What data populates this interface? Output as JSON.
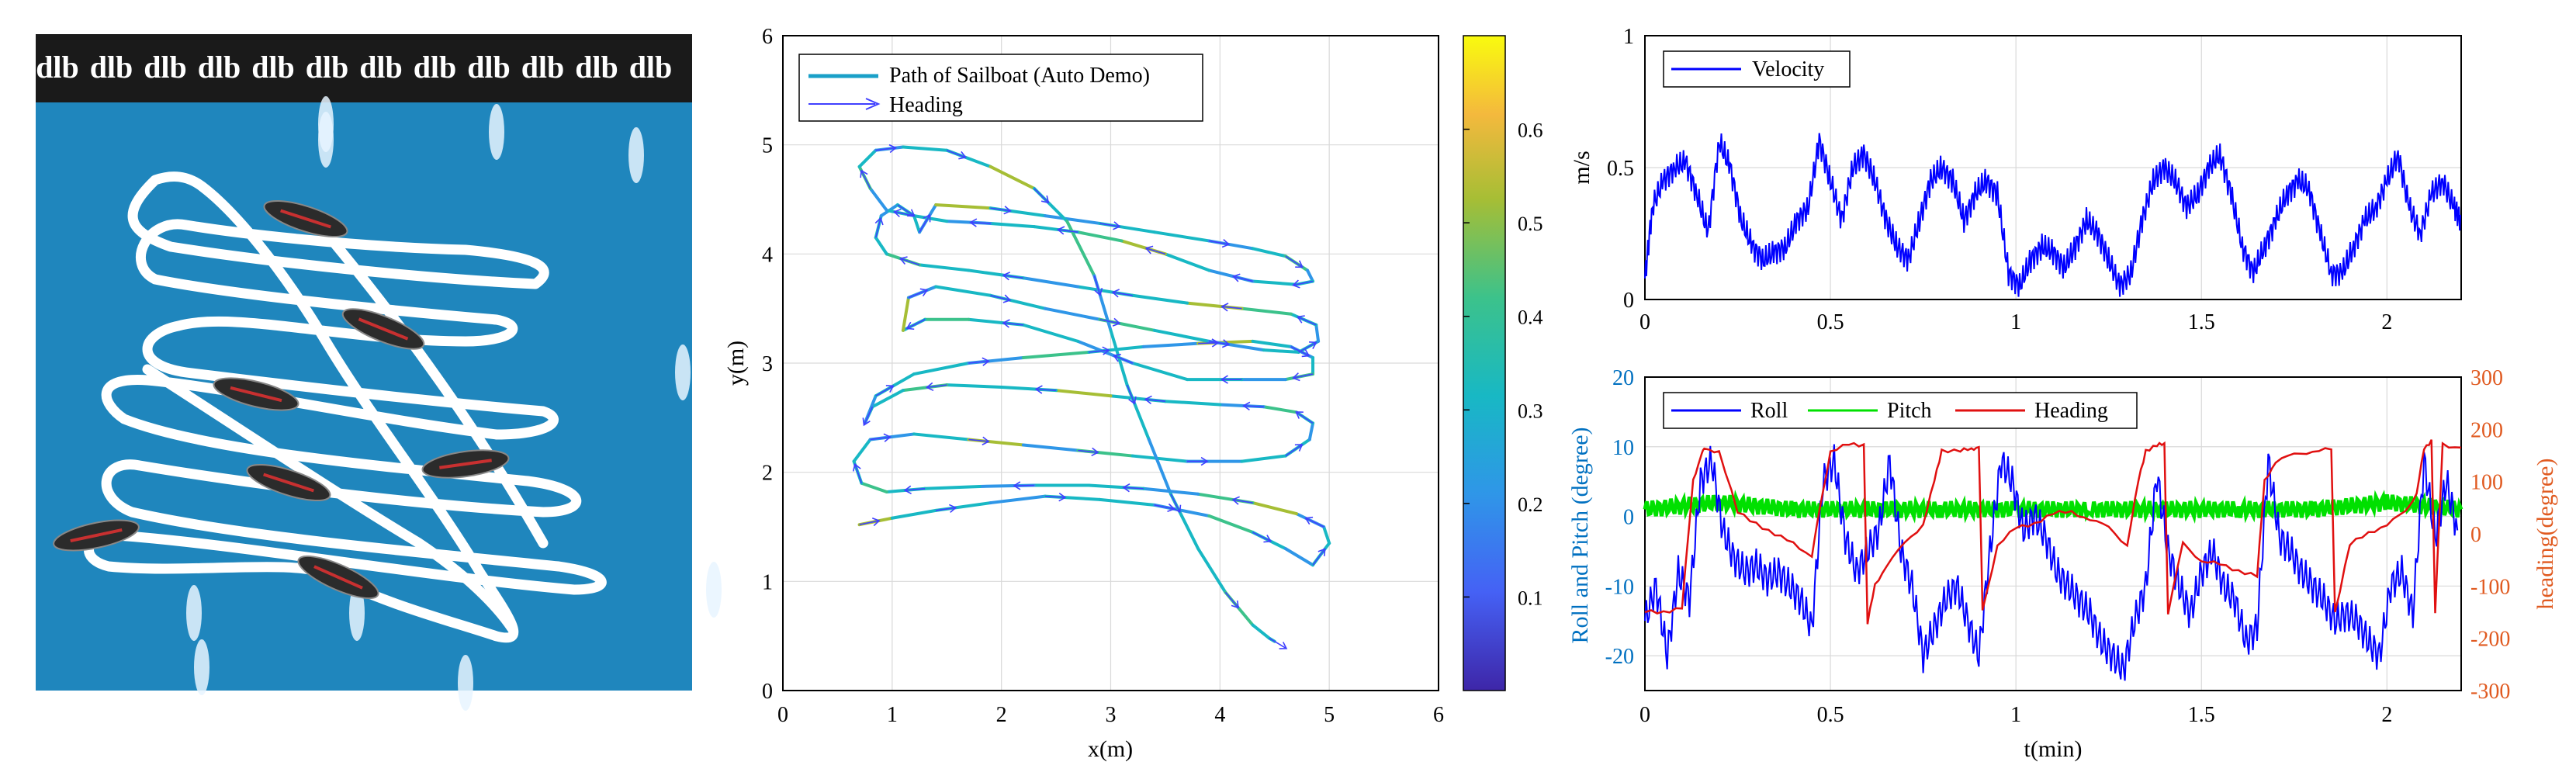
{
  "photo": {
    "logo_glyph": "dlb",
    "logo_count": 12,
    "colors": {
      "water": "#1f86bd",
      "banner": "#1a1a1a",
      "track": "#ffffff"
    }
  },
  "colors": {
    "roll": "#0000ff",
    "pitch": "#00e000",
    "heading": "#e01010",
    "velocity": "#0000ff",
    "left_axis": "#0070c0",
    "right_axis": "#e05a20",
    "heading_arrow": "#4040ff"
  },
  "chart_data": [
    {
      "type": "line",
      "panel": "trajectory",
      "xlabel": "x(m)",
      "ylabel": "y(m)",
      "xlim": [
        0,
        6
      ],
      "ylim": [
        0,
        6
      ],
      "xticks": [
        "0",
        "1",
        "2",
        "3",
        "4",
        "5",
        "6"
      ],
      "yticks": [
        "0",
        "1",
        "2",
        "3",
        "4",
        "5",
        "6"
      ],
      "grid": true,
      "legend": {
        "position": "top-left",
        "entries": [
          "Path of Sailboat (Auto Demo)",
          "Heading"
        ]
      },
      "colorbar": {
        "range": [
          0,
          0.7
        ],
        "ticks": [
          "0.1",
          "0.2",
          "0.3",
          "0.4",
          "0.5",
          "0.6"
        ],
        "colormap": "parula"
      },
      "series": [
        {
          "name": "Path of Sailboat (Auto Demo)",
          "x": [
            0.7,
            1.0,
            1.4,
            1.9,
            2.4,
            2.9,
            3.4,
            3.9,
            4.3,
            4.6,
            4.85,
            5.0,
            4.95,
            4.7,
            4.3,
            3.8,
            3.3,
            2.8,
            2.3,
            1.8,
            1.3,
            0.95,
            0.72,
            0.65,
            0.8,
            1.2,
            1.7,
            2.2,
            2.7,
            3.2,
            3.7,
            4.2,
            4.6,
            4.82,
            4.85,
            4.7,
            4.4,
            4.0,
            3.5,
            3.0,
            2.5,
            2.0,
            1.5,
            1.1,
            0.82,
            0.75,
            0.85,
            1.2,
            1.7,
            2.2,
            2.8,
            3.3,
            3.8,
            4.3,
            4.65,
            4.85,
            4.85,
            4.6,
            4.2,
            3.7,
            3.2,
            2.7,
            2.2,
            1.7,
            1.3,
            1.1,
            1.15,
            1.4,
            1.9,
            2.4,
            2.9,
            3.4,
            3.9,
            4.4,
            4.72,
            4.9,
            4.88,
            4.65,
            4.2,
            3.7,
            3.2,
            2.7,
            2.2,
            1.7,
            1.25,
            0.95,
            0.85,
            0.9,
            1.05,
            1.2,
            1.25,
            1.4,
            1.9,
            2.4,
            2.9,
            3.4,
            3.9,
            4.3,
            4.6,
            4.8,
            4.85,
            4.7,
            4.3,
            3.9,
            3.5,
            3.1,
            2.7,
            2.3,
            1.9,
            1.5,
            1.2,
            0.95,
            0.8,
            0.7,
            0.85,
            1.1,
            1.5,
            1.9,
            2.3,
            2.6,
            2.85,
            3.0,
            3.15,
            3.35,
            3.55,
            3.8,
            4.05,
            4.3,
            4.45,
            4.5
          ],
          "y": [
            1.52,
            1.58,
            1.65,
            1.72,
            1.78,
            1.75,
            1.7,
            1.6,
            1.45,
            1.3,
            1.15,
            1.35,
            1.5,
            1.62,
            1.72,
            1.8,
            1.85,
            1.88,
            1.88,
            1.87,
            1.85,
            1.82,
            1.9,
            2.1,
            2.3,
            2.35,
            2.3,
            2.25,
            2.2,
            2.15,
            2.1,
            2.1,
            2.15,
            2.3,
            2.45,
            2.55,
            2.6,
            2.62,
            2.65,
            2.7,
            2.75,
            2.78,
            2.8,
            2.75,
            2.6,
            2.45,
            2.7,
            2.9,
            3.0,
            3.05,
            3.1,
            3.15,
            3.18,
            3.2,
            3.15,
            3.05,
            2.9,
            2.85,
            2.85,
            2.85,
            3.0,
            3.2,
            3.35,
            3.4,
            3.4,
            3.3,
            3.6,
            3.7,
            3.62,
            3.5,
            3.4,
            3.3,
            3.2,
            3.12,
            3.1,
            3.2,
            3.35,
            3.45,
            3.5,
            3.55,
            3.62,
            3.7,
            3.78,
            3.85,
            3.9,
            4.0,
            4.15,
            4.35,
            4.45,
            4.35,
            4.2,
            4.45,
            4.42,
            4.35,
            4.28,
            4.2,
            4.12,
            4.05,
            3.98,
            3.85,
            3.75,
            3.72,
            3.75,
            3.85,
            4.0,
            4.12,
            4.2,
            4.25,
            4.28,
            4.3,
            4.35,
            4.4,
            4.6,
            4.8,
            4.95,
            4.98,
            4.95,
            4.8,
            4.6,
            4.3,
            3.8,
            3.3,
            2.8,
            2.3,
            1.8,
            1.3,
            0.9,
            0.6,
            0.48,
            0.45
          ]
        }
      ]
    },
    {
      "type": "line",
      "panel": "velocity",
      "xlabel": "",
      "ylabel": "m/s",
      "xlim": [
        0,
        2.2
      ],
      "ylim": [
        0,
        1
      ],
      "xticks": [
        "0",
        "0.5",
        "1",
        "1.5",
        "2"
      ],
      "yticks": [
        "0",
        "0.5",
        "1"
      ],
      "grid": true,
      "legend": {
        "position": "top-left",
        "entries": [
          "Velocity"
        ]
      },
      "series": [
        {
          "name": "Velocity",
          "x": [
            0,
            0.02,
            0.05,
            0.08,
            0.11,
            0.14,
            0.17,
            0.2,
            0.23,
            0.26,
            0.29,
            0.32,
            0.35,
            0.38,
            0.41,
            0.44,
            0.47,
            0.5,
            0.53,
            0.56,
            0.59,
            0.62,
            0.65,
            0.68,
            0.71,
            0.74,
            0.77,
            0.8,
            0.83,
            0.86,
            0.89,
            0.92,
            0.95,
            0.98,
            1.01,
            1.04,
            1.07,
            1.1,
            1.13,
            1.16,
            1.19,
            1.22,
            1.25,
            1.28,
            1.31,
            1.34,
            1.37,
            1.4,
            1.43,
            1.46,
            1.49,
            1.52,
            1.55,
            1.58,
            1.61,
            1.64,
            1.67,
            1.7,
            1.73,
            1.76,
            1.79,
            1.82,
            1.85,
            1.88,
            1.91,
            1.94,
            1.97,
            2.0,
            2.03,
            2.06,
            2.09,
            2.12,
            2.15,
            2.18,
            2.2
          ],
          "y": [
            0.08,
            0.35,
            0.45,
            0.5,
            0.52,
            0.4,
            0.25,
            0.6,
            0.5,
            0.3,
            0.2,
            0.15,
            0.18,
            0.2,
            0.3,
            0.35,
            0.6,
            0.45,
            0.3,
            0.5,
            0.55,
            0.45,
            0.3,
            0.2,
            0.15,
            0.3,
            0.45,
            0.5,
            0.45,
            0.3,
            0.4,
            0.45,
            0.4,
            0.1,
            0.05,
            0.15,
            0.2,
            0.18,
            0.12,
            0.2,
            0.3,
            0.25,
            0.15,
            0.05,
            0.1,
            0.3,
            0.45,
            0.5,
            0.45,
            0.35,
            0.4,
            0.5,
            0.55,
            0.4,
            0.2,
            0.1,
            0.2,
            0.3,
            0.4,
            0.45,
            0.42,
            0.25,
            0.1,
            0.1,
            0.2,
            0.3,
            0.35,
            0.45,
            0.55,
            0.35,
            0.25,
            0.4,
            0.45,
            0.35,
            0.3
          ]
        }
      ]
    },
    {
      "type": "line",
      "panel": "attitude",
      "xlabel": "t(min)",
      "ylabel": "Roll and Pitch (degree)",
      "ylabel_right": "heading(degree)",
      "xlim": [
        0,
        2.2
      ],
      "ylim": [
        -25,
        20
      ],
      "ylim_right": [
        -300,
        300
      ],
      "xticks": [
        "0",
        "0.5",
        "1",
        "1.5",
        "2"
      ],
      "yticks": [
        "-20",
        "-10",
        "0",
        "10",
        "20"
      ],
      "yticks_right": [
        "-300",
        "-200",
        "-100",
        "0",
        "100",
        "200",
        "300"
      ],
      "grid": true,
      "legend": {
        "position": "top-left",
        "entries": [
          "Roll",
          "Pitch",
          "Heading"
        ]
      },
      "series": [
        {
          "name": "Roll",
          "axis": "left",
          "x": [
            0,
            0.03,
            0.06,
            0.09,
            0.12,
            0.15,
            0.18,
            0.21,
            0.24,
            0.27,
            0.3,
            0.33,
            0.36,
            0.39,
            0.42,
            0.45,
            0.48,
            0.51,
            0.54,
            0.57,
            0.6,
            0.63,
            0.66,
            0.69,
            0.72,
            0.75,
            0.78,
            0.81,
            0.84,
            0.87,
            0.9,
            0.93,
            0.96,
            0.99,
            1.02,
            1.05,
            1.08,
            1.11,
            1.14,
            1.17,
            1.2,
            1.23,
            1.26,
            1.29,
            1.32,
            1.35,
            1.38,
            1.41,
            1.44,
            1.47,
            1.5,
            1.53,
            1.56,
            1.59,
            1.62,
            1.65,
            1.68,
            1.71,
            1.74,
            1.77,
            1.8,
            1.83,
            1.86,
            1.89,
            1.92,
            1.95,
            1.98,
            2.01,
            2.04,
            2.07,
            2.1,
            2.13,
            2.16,
            2.19
          ],
          "y": [
            -15,
            -10,
            -20,
            -8,
            -12,
            5,
            8,
            -2,
            -6,
            -8,
            -7,
            -9,
            -8,
            -10,
            -12,
            -16,
            5,
            8,
            -3,
            -8,
            -5,
            -2,
            8,
            -5,
            -10,
            -20,
            -16,
            -12,
            -10,
            -15,
            -20,
            -5,
            8,
            5,
            -2,
            0,
            -3,
            -8,
            -10,
            -12,
            -14,
            -18,
            -20,
            -22,
            -15,
            -10,
            6,
            -5,
            -10,
            -14,
            -8,
            -5,
            -10,
            -12,
            -18,
            -16,
            8,
            -3,
            -5,
            -8,
            -10,
            -12,
            -15,
            -14,
            -15,
            -18,
            -20,
            -10,
            -8,
            -14,
            8,
            -3,
            5,
            -2
          ]
        },
        {
          "name": "Pitch",
          "axis": "left",
          "x": [
            0,
            0.2,
            0.4,
            0.6,
            0.8,
            1.0,
            1.2,
            1.4,
            1.6,
            1.8,
            2.0,
            2.2
          ],
          "y": [
            1,
            2,
            1,
            1,
            1,
            1,
            1,
            1,
            1,
            1,
            2,
            1
          ]
        },
        {
          "name": "Heading",
          "axis": "right",
          "x": [
            0,
            0.05,
            0.1,
            0.13,
            0.15,
            0.16,
            0.2,
            0.25,
            0.3,
            0.35,
            0.4,
            0.45,
            0.47,
            0.5,
            0.55,
            0.59,
            0.6,
            0.62,
            0.65,
            0.7,
            0.75,
            0.78,
            0.8,
            0.85,
            0.88,
            0.9,
            0.91,
            0.95,
            1.0,
            1.05,
            1.1,
            1.15,
            1.2,
            1.25,
            1.3,
            1.33,
            1.35,
            1.38,
            1.4,
            1.41,
            1.45,
            1.5,
            1.55,
            1.6,
            1.65,
            1.67,
            1.7,
            1.75,
            1.8,
            1.85,
            1.86,
            1.9,
            1.95,
            2.0,
            2.05,
            2.08,
            2.1,
            2.12,
            2.13,
            2.15,
            2.2
          ],
          "y": [
            -150,
            -150,
            -140,
            100,
            150,
            160,
            160,
            40,
            20,
            0,
            -20,
            -40,
            40,
            160,
            170,
            170,
            -170,
            -100,
            -60,
            -20,
            20,
            100,
            160,
            160,
            160,
            170,
            -150,
            -20,
            10,
            20,
            40,
            40,
            30,
            10,
            -20,
            100,
            160,
            170,
            170,
            -150,
            -20,
            -50,
            -60,
            -70,
            -80,
            100,
            140,
            150,
            160,
            160,
            -150,
            -20,
            0,
            20,
            40,
            80,
            160,
            180,
            -150,
            170,
            165
          ]
        }
      ]
    }
  ]
}
